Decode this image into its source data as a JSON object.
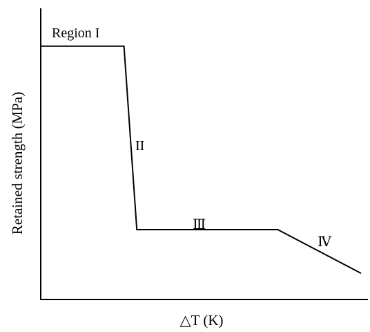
{
  "chart_data": {
    "type": "line",
    "title": "",
    "xlabel": "△T (K)",
    "ylabel": "Retained strength (MPa)",
    "ticks": false,
    "grid": false,
    "series": [
      {
        "x": [
          0,
          0.26,
          0.3,
          0.74,
          1.0
        ],
        "y": [
          0.87,
          0.87,
          0.24,
          0.24,
          0.09
        ]
      }
    ],
    "annotations": [
      "Region I",
      "II",
      "Ⅲ",
      "Ⅳ"
    ]
  },
  "colors": {
    "line": "#000000",
    "axis": "#000000",
    "background": "#ffffff"
  }
}
